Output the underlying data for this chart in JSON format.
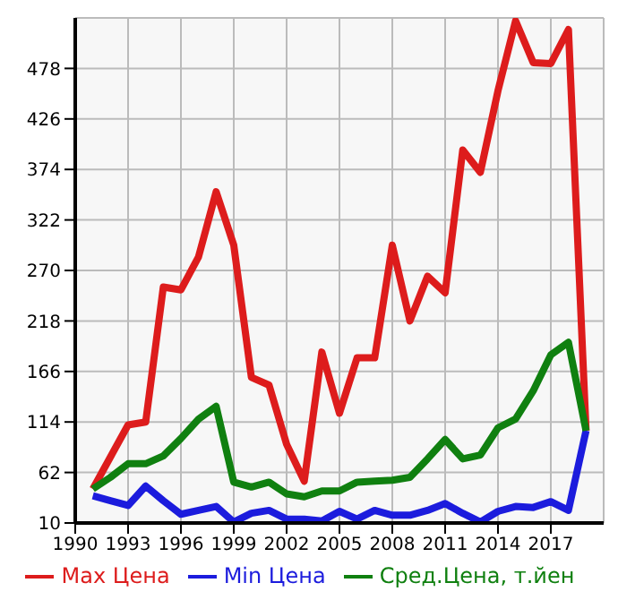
{
  "chart_data": {
    "type": "line",
    "x": [
      1991,
      1992,
      1993,
      1994,
      1995,
      1996,
      1997,
      1998,
      1999,
      2000,
      2001,
      2002,
      2003,
      2004,
      2005,
      2006,
      2007,
      2008,
      2009,
      2010,
      2011,
      2012,
      2013,
      2014,
      2015,
      2016,
      2017,
      2018,
      2019
    ],
    "series": [
      {
        "name": "Max Цена",
        "color": "#dd1c1c",
        "values": [
          45,
          78,
          111,
          114,
          253,
          250,
          284,
          351,
          296,
          160,
          152,
          91,
          53,
          186,
          123,
          180,
          180,
          296,
          218,
          264,
          247,
          394,
          371,
          455,
          527,
          484,
          483,
          518,
          105
        ]
      },
      {
        "name": "Min Цена",
        "color": "#1c1cdd",
        "values": [
          38,
          33,
          28,
          48,
          33,
          19,
          23,
          27,
          11,
          20,
          23,
          14,
          14,
          12,
          22,
          14,
          23,
          18,
          18,
          23,
          30,
          20,
          11,
          22,
          27,
          26,
          32,
          23,
          105
        ]
      },
      {
        "name": "Сред.Цена, т.йен",
        "color": "#108010",
        "values": [
          45,
          57,
          71,
          71,
          79,
          97,
          117,
          130,
          52,
          47,
          52,
          40,
          37,
          43,
          43,
          52,
          53,
          54,
          57,
          76,
          96,
          76,
          80,
          108,
          117,
          146,
          183,
          196,
          105
        ]
      }
    ],
    "xlim": [
      1990,
      2020
    ],
    "xticks": [
      1990,
      1993,
      1996,
      1999,
      2002,
      2005,
      2008,
      2011,
      2014,
      2017
    ],
    "ylim": [
      10,
      530
    ],
    "yticks": [
      10,
      62,
      114,
      166,
      218,
      270,
      322,
      374,
      426,
      478
    ],
    "grid": true,
    "legend": "bottom",
    "marker": "none",
    "line_style": "solid"
  }
}
